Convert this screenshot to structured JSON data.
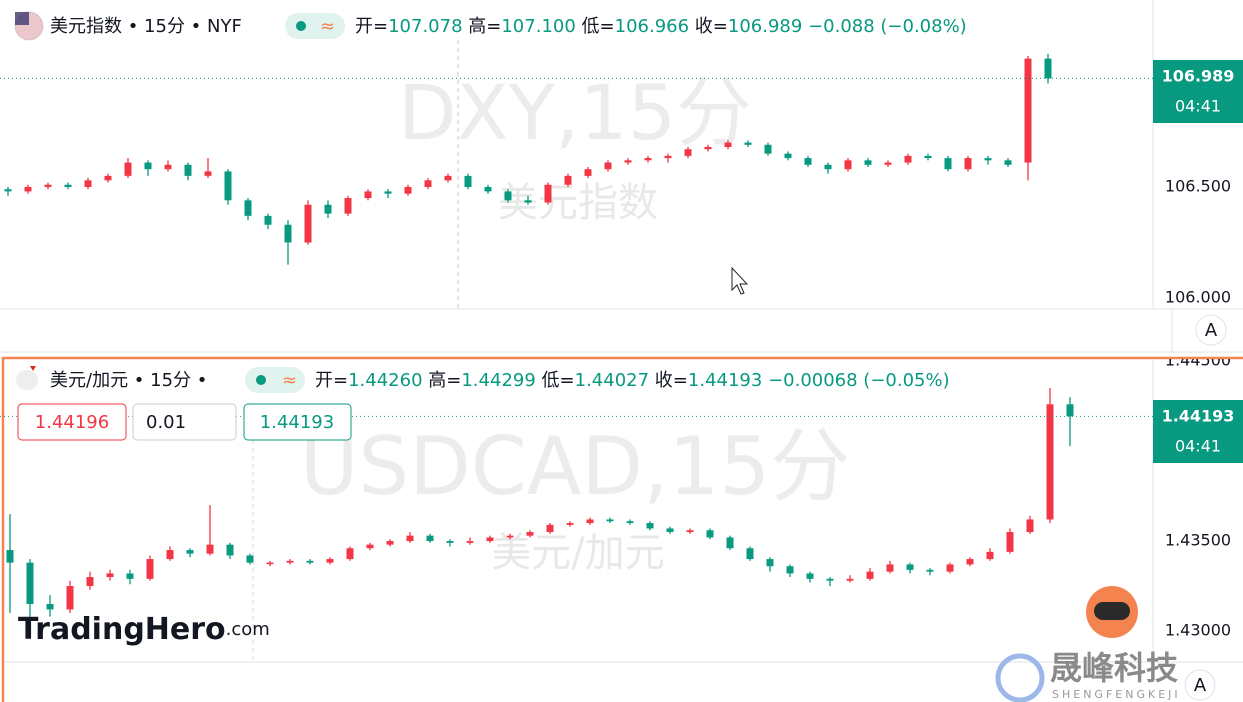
{
  "chart_data": [
    {
      "type": "candlestick",
      "symbol": "美元指数 • 15分 • NYF",
      "indicator": "≈",
      "labels": {
        "open": "开=",
        "high": "高=",
        "low": "低=",
        "close": "收="
      },
      "legend": {
        "open": "107.078",
        "high": "107.100",
        "low": "106.966",
        "close": "106.989",
        "change": "−0.088 (−0.08%)"
      },
      "watermark": "DXY,15分",
      "watermark_sub": "美元指数",
      "price_label": "106.989",
      "countdown": "04:41",
      "scale_button": "A",
      "up_color": "#f23645",
      "down_color": "#089981",
      "ylim": [
        105.955,
        107.342
      ],
      "yticks": [
        {
          "value": 106,
          "label": "106.000"
        },
        {
          "value": 106.5,
          "label": "106.500"
        }
      ],
      "ohlc": [
        [
          106.49,
          106.5,
          106.46,
          106.48
        ],
        [
          106.48,
          106.51,
          106.47,
          106.5
        ],
        [
          106.5,
          106.52,
          106.49,
          106.51
        ],
        [
          106.51,
          106.52,
          106.49,
          106.5
        ],
        [
          106.5,
          106.54,
          106.49,
          106.53
        ],
        [
          106.53,
          106.56,
          106.52,
          106.55
        ],
        [
          106.55,
          106.63,
          106.54,
          106.61
        ],
        [
          106.61,
          106.62,
          106.55,
          106.58
        ],
        [
          106.58,
          106.62,
          106.57,
          106.6
        ],
        [
          106.6,
          106.61,
          106.53,
          106.55
        ],
        [
          106.55,
          106.63,
          106.54,
          106.57
        ],
        [
          106.57,
          106.58,
          106.42,
          106.44
        ],
        [
          106.44,
          106.45,
          106.35,
          106.37
        ],
        [
          106.37,
          106.38,
          106.31,
          106.33
        ],
        [
          106.33,
          106.35,
          106.15,
          106.25
        ],
        [
          106.25,
          106.44,
          106.24,
          106.42
        ],
        [
          106.42,
          106.44,
          106.36,
          106.38
        ],
        [
          106.38,
          106.46,
          106.37,
          106.45
        ],
        [
          106.45,
          106.49,
          106.44,
          106.48
        ],
        [
          106.48,
          106.49,
          106.45,
          106.47
        ],
        [
          106.47,
          106.51,
          106.46,
          106.5
        ],
        [
          106.5,
          106.54,
          106.49,
          106.53
        ],
        [
          106.53,
          106.56,
          106.52,
          106.55
        ],
        [
          106.55,
          106.56,
          106.49,
          106.5
        ],
        [
          106.5,
          106.51,
          106.47,
          106.48
        ],
        [
          106.48,
          106.49,
          106.43,
          106.44
        ],
        [
          106.44,
          106.46,
          106.42,
          106.43
        ],
        [
          106.43,
          106.52,
          106.42,
          106.51
        ],
        [
          106.51,
          106.56,
          106.5,
          106.55
        ],
        [
          106.55,
          106.59,
          106.54,
          106.58
        ],
        [
          106.58,
          106.62,
          106.57,
          106.61
        ],
        [
          106.61,
          106.63,
          106.6,
          106.62
        ],
        [
          106.62,
          106.64,
          106.61,
          106.63
        ],
        [
          106.63,
          106.65,
          106.61,
          106.64
        ],
        [
          106.64,
          106.68,
          106.63,
          106.67
        ],
        [
          106.67,
          106.69,
          106.66,
          106.68
        ],
        [
          106.68,
          106.71,
          106.67,
          106.7
        ],
        [
          106.7,
          106.71,
          106.68,
          106.69
        ],
        [
          106.69,
          106.7,
          106.64,
          106.65
        ],
        [
          106.65,
          106.66,
          106.62,
          106.63
        ],
        [
          106.63,
          106.64,
          106.59,
          106.6
        ],
        [
          106.6,
          106.61,
          106.56,
          106.58
        ],
        [
          106.58,
          106.63,
          106.57,
          106.62
        ],
        [
          106.62,
          106.63,
          106.59,
          106.6
        ],
        [
          106.6,
          106.62,
          106.59,
          106.61
        ],
        [
          106.61,
          106.65,
          106.6,
          106.64
        ],
        [
          106.64,
          106.65,
          106.62,
          106.63
        ],
        [
          106.63,
          106.64,
          106.57,
          106.58
        ],
        [
          106.58,
          106.64,
          106.57,
          106.63
        ],
        [
          106.63,
          106.64,
          106.6,
          106.62
        ],
        [
          106.62,
          106.63,
          106.59,
          106.6
        ],
        [
          106.61,
          107.09,
          106.53,
          107.078
        ],
        [
          107.078,
          107.1,
          106.966,
          106.989
        ]
      ]
    },
    {
      "type": "candlestick",
      "symbol": "美元/加元 • 15分 •",
      "indicator": "≈",
      "labels": {
        "open": "开=",
        "high": "高=",
        "low": "低=",
        "close": "收="
      },
      "legend": {
        "open": "1.44260",
        "high": "1.44299",
        "low": "1.44027",
        "close": "1.44193",
        "change": "−0.00068 (−0.05%)"
      },
      "sell": "1.44196",
      "spread": "0.01",
      "buy": "1.44193",
      "watermark": "USDCAD,15分",
      "watermark_sub": "美元/加元",
      "price_label": "1.44193",
      "countdown": "04:41",
      "scale_button": "A",
      "up_color": "#f23645",
      "down_color": "#089981",
      "ylim": [
        1.42828,
        1.44517
      ],
      "yticks": [
        {
          "value": 1.43,
          "label": "1.43000"
        },
        {
          "value": 1.435,
          "label": "1.43500"
        },
        {
          "value": 1.445,
          "label": "1.44500"
        }
      ],
      "ohlc": [
        [
          1.4345,
          1.4365,
          1.431,
          1.4338
        ],
        [
          1.4338,
          1.434,
          1.4308,
          1.4315
        ],
        [
          1.4315,
          1.432,
          1.4308,
          1.4312
        ],
        [
          1.4312,
          1.4328,
          1.431,
          1.4325
        ],
        [
          1.4325,
          1.4333,
          1.4323,
          1.433
        ],
        [
          1.433,
          1.4334,
          1.4328,
          1.4332
        ],
        [
          1.4332,
          1.4334,
          1.4326,
          1.4329
        ],
        [
          1.4329,
          1.4342,
          1.4328,
          1.434
        ],
        [
          1.434,
          1.4347,
          1.4339,
          1.4345
        ],
        [
          1.4345,
          1.4346,
          1.4341,
          1.4343
        ],
        [
          1.4343,
          1.437,
          1.4342,
          1.4348
        ],
        [
          1.4348,
          1.4349,
          1.434,
          1.4342
        ],
        [
          1.4342,
          1.4343,
          1.4337,
          1.4338
        ],
        [
          1.4338,
          1.4339,
          1.4336,
          1.4338
        ],
        [
          1.4338,
          1.434,
          1.4337,
          1.4339
        ],
        [
          1.4339,
          1.434,
          1.4337,
          1.4338
        ],
        [
          1.4338,
          1.4341,
          1.4337,
          1.434
        ],
        [
          1.434,
          1.4347,
          1.4339,
          1.4346
        ],
        [
          1.4346,
          1.4349,
          1.4345,
          1.4348
        ],
        [
          1.4348,
          1.4351,
          1.4347,
          1.435
        ],
        [
          1.435,
          1.4355,
          1.4349,
          1.4353
        ],
        [
          1.4353,
          1.4354,
          1.4349,
          1.435
        ],
        [
          1.435,
          1.4351,
          1.4347,
          1.4349
        ],
        [
          1.4349,
          1.4352,
          1.4348,
          1.435
        ],
        [
          1.435,
          1.4353,
          1.4349,
          1.4352
        ],
        [
          1.4352,
          1.4354,
          1.4351,
          1.4353
        ],
        [
          1.4353,
          1.4356,
          1.4352,
          1.4355
        ],
        [
          1.4355,
          1.436,
          1.4354,
          1.4359
        ],
        [
          1.4359,
          1.4361,
          1.4358,
          1.436
        ],
        [
          1.436,
          1.4363,
          1.4359,
          1.4362
        ],
        [
          1.4362,
          1.4363,
          1.436,
          1.4361
        ],
        [
          1.4361,
          1.4362,
          1.4359,
          1.436
        ],
        [
          1.436,
          1.4361,
          1.4356,
          1.4357
        ],
        [
          1.4357,
          1.4358,
          1.4354,
          1.4355
        ],
        [
          1.4355,
          1.4357,
          1.4354,
          1.4356
        ],
        [
          1.4356,
          1.4357,
          1.4351,
          1.4352
        ],
        [
          1.4352,
          1.4353,
          1.4345,
          1.4346
        ],
        [
          1.4346,
          1.4347,
          1.4339,
          1.434
        ],
        [
          1.434,
          1.4341,
          1.4333,
          1.4336
        ],
        [
          1.4336,
          1.4337,
          1.433,
          1.4332
        ],
        [
          1.4332,
          1.4333,
          1.4327,
          1.4329
        ],
        [
          1.4329,
          1.433,
          1.4325,
          1.4328
        ],
        [
          1.4328,
          1.4331,
          1.4327,
          1.4329
        ],
        [
          1.4329,
          1.4335,
          1.4328,
          1.4333
        ],
        [
          1.4333,
          1.4339,
          1.4332,
          1.4337
        ],
        [
          1.4337,
          1.4338,
          1.4332,
          1.4334
        ],
        [
          1.4334,
          1.4335,
          1.4331,
          1.4333
        ],
        [
          1.4333,
          1.4338,
          1.4332,
          1.4337
        ],
        [
          1.4337,
          1.4341,
          1.4336,
          1.434
        ],
        [
          1.434,
          1.4346,
          1.4339,
          1.4344
        ],
        [
          1.4344,
          1.4357,
          1.4343,
          1.4355
        ],
        [
          1.4355,
          1.4364,
          1.4354,
          1.4362
        ],
        [
          1.4362,
          1.4435,
          1.436,
          1.4426
        ],
        [
          1.4426,
          1.44299,
          1.44027,
          1.44193
        ]
      ]
    }
  ],
  "brand": {
    "logo": "TradingHero",
    "logo_suffix": ".com",
    "company": "晟峰科技",
    "company_en": "SHENGFENGKEJI"
  }
}
